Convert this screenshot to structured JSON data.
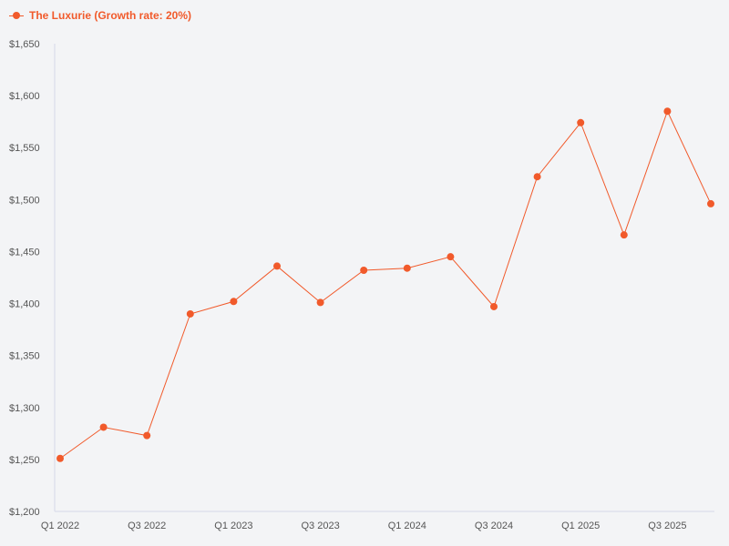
{
  "chart_data": {
    "type": "line",
    "title": "",
    "xlabel": "",
    "ylabel": "",
    "categories": [
      "Q1 2022",
      "Q2 2022",
      "Q3 2022",
      "Q4 2022",
      "Q1 2023",
      "Q2 2023",
      "Q3 2023",
      "Q4 2023",
      "Q1 2024",
      "Q2 2024",
      "Q3 2024",
      "Q4 2024",
      "Q1 2025",
      "Q2 2025",
      "Q3 2025",
      "Q4 2025"
    ],
    "x_tick_labels": [
      "Q1 2022",
      "Q3 2022",
      "Q1 2023",
      "Q3 2023",
      "Q1 2024",
      "Q3 2024",
      "Q1 2025",
      "Q3 2025"
    ],
    "series": [
      {
        "name": "The Luxurie (Growth rate: 20%)",
        "color": "#f15a2b",
        "values": [
          1251,
          1281,
          1273,
          1390,
          1402,
          1436,
          1401,
          1432,
          1434,
          1445,
          1397,
          1522,
          1574,
          1466,
          1585,
          1496
        ]
      }
    ],
    "ylim": [
      1200,
      1650
    ],
    "y_ticks": [
      1200,
      1250,
      1300,
      1350,
      1400,
      1450,
      1500,
      1550,
      1600,
      1650
    ],
    "y_tick_labels": [
      "$1,200",
      "$1,250",
      "$1,300",
      "$1,350",
      "$1,400",
      "$1,450",
      "$1,500",
      "$1,550",
      "$1,600",
      "$1,650"
    ],
    "grid": false,
    "legend_position": "top-left"
  }
}
